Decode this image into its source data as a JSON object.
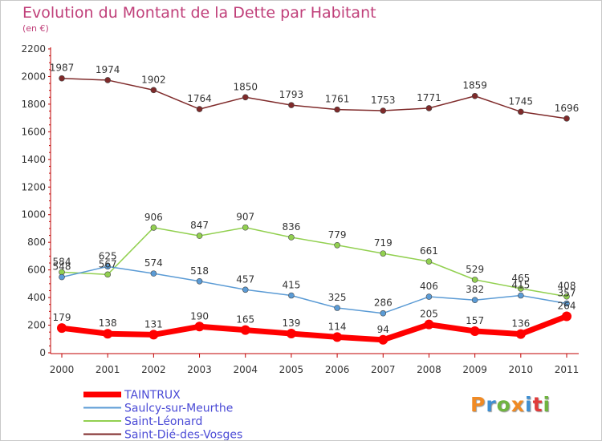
{
  "title": "Evolution du Montant de la Dette par Habitant",
  "subtitle": "(en €)",
  "logo_text": "Proxiti",
  "colors": {
    "title": "#c0407a",
    "axis": "#c00000",
    "TAINTRUX": "#ff0000",
    "Saulcy": "#5b9bd5",
    "Saint-Leonard": "#92d050",
    "Saint-Die": "#7f2a2a"
  },
  "chart_data": {
    "type": "line",
    "title": "Evolution du Montant de la Dette par Habitant",
    "ylabel": "(en €)",
    "x": [
      "2000",
      "2001",
      "2002",
      "2003",
      "2004",
      "2005",
      "2006",
      "2007",
      "2008",
      "2009",
      "2010",
      "2011"
    ],
    "ylim": [
      0,
      2200
    ],
    "yticks": [
      "0",
      "200",
      "400",
      "600",
      "800",
      "1000",
      "1200",
      "1400",
      "1600",
      "1800",
      "2000",
      "2200"
    ],
    "grid": false,
    "legend": "bottom-left",
    "series": [
      {
        "name": "TAINTRUX",
        "values": [
          179,
          138,
          131,
          190,
          165,
          139,
          114,
          94,
          205,
          157,
          136,
          264
        ],
        "labels": [
          "179",
          "138",
          "131",
          "190",
          "165",
          "139",
          "114",
          "94",
          "205",
          "157",
          "136",
          "264"
        ]
      },
      {
        "name": "Saulcy-sur-Meurthe",
        "values": [
          548,
          625,
          574,
          518,
          457,
          415,
          325,
          286,
          406,
          382,
          415,
          357
        ],
        "labels": [
          "548",
          "625",
          "574",
          "518",
          "457",
          "415",
          "325",
          "286",
          "406",
          "382",
          "415",
          "357"
        ]
      },
      {
        "name": "Saint-Léonard",
        "values": [
          584,
          567,
          906,
          847,
          907,
          836,
          779,
          719,
          661,
          529,
          465,
          408
        ],
        "labels": [
          "584",
          "567",
          "906",
          "847",
          "907",
          "836",
          "779",
          "719",
          "661",
          "529",
          "465",
          "408"
        ]
      },
      {
        "name": "Saint-Dié-des-Vosges",
        "values": [
          1987,
          1974,
          1902,
          1764,
          1850,
          1793,
          1761,
          1753,
          1771,
          1859,
          1745,
          1696
        ],
        "labels": [
          "1987",
          "1974",
          "1902",
          "1764",
          "1850",
          "1793",
          "1761",
          "1753",
          "1771",
          "1859",
          "1745",
          "1696"
        ]
      }
    ]
  }
}
